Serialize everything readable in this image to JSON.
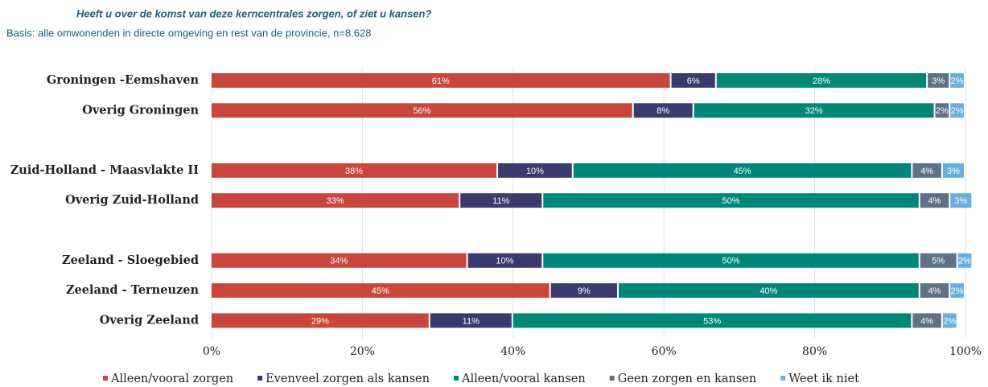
{
  "chart_data": {
    "type": "stacked-bar-horizontal",
    "title": "Heeft u over de komst van deze kerncentrales zorgen, of ziet u kansen?",
    "subtitle": "Basis: alle omwonenden in directe omgeving en rest van de provincie, n=8.628",
    "categories": [
      "Groningen -Eemshaven",
      "Overig Groningen",
      null,
      "Zuid-Holland - Maasvlakte II",
      "Overig Zuid-Holland",
      null,
      "Zeeland - Sloegebied",
      "Zeeland - Terneuzen",
      "Overig Zeeland"
    ],
    "series": [
      {
        "name": "Alleen/vooral zorgen",
        "color": "#c9463d",
        "values": [
          61,
          56,
          null,
          38,
          33,
          null,
          34,
          45,
          29
        ],
        "value_labels": [
          "61%",
          "56%",
          null,
          "38%",
          "33%",
          null,
          "34%",
          "45%",
          "29%"
        ]
      },
      {
        "name": "Evenveel zorgen als kansen",
        "color": "#3b3a6e",
        "values": [
          6,
          8,
          null,
          10,
          11,
          null,
          10,
          9,
          11
        ],
        "value_labels": [
          "6%",
          "8%",
          null,
          "10%",
          "11%",
          null,
          "10%",
          "9%",
          "11%"
        ]
      },
      {
        "name": "Alleen/vooral kansen",
        "color": "#00877a",
        "values": [
          28,
          32,
          null,
          45,
          50,
          null,
          50,
          40,
          53
        ],
        "value_labels": [
          "28%",
          "32%",
          null,
          "45%",
          "50%",
          null,
          "50%",
          "40%",
          "53%"
        ]
      },
      {
        "name": "Geen zorgen en kansen",
        "color": "#5f7185",
        "values": [
          3,
          2,
          null,
          4,
          4,
          null,
          5,
          4,
          4
        ],
        "value_labels": [
          "3%",
          "2%",
          null,
          "4%",
          "4%",
          null,
          "5%",
          "4%",
          "4%"
        ]
      },
      {
        "name": "Weet ik niet",
        "color": "#6aaee0",
        "values": [
          2,
          2,
          null,
          3,
          3,
          null,
          2,
          2,
          2
        ],
        "value_labels": [
          "2%",
          "2%",
          null,
          "3%",
          "3%",
          null,
          "2%",
          "2%",
          "2%"
        ]
      }
    ],
    "xlim": [
      0,
      100
    ],
    "xticks": [
      {
        "value": 0,
        "label": "0%"
      },
      {
        "value": 20,
        "label": "20%"
      },
      {
        "value": 40,
        "label": "40%"
      },
      {
        "value": 60,
        "label": "60%"
      },
      {
        "value": 80,
        "label": "80%"
      },
      {
        "value": 100,
        "label": "100%"
      }
    ],
    "grid": true,
    "legend": "bottom"
  }
}
